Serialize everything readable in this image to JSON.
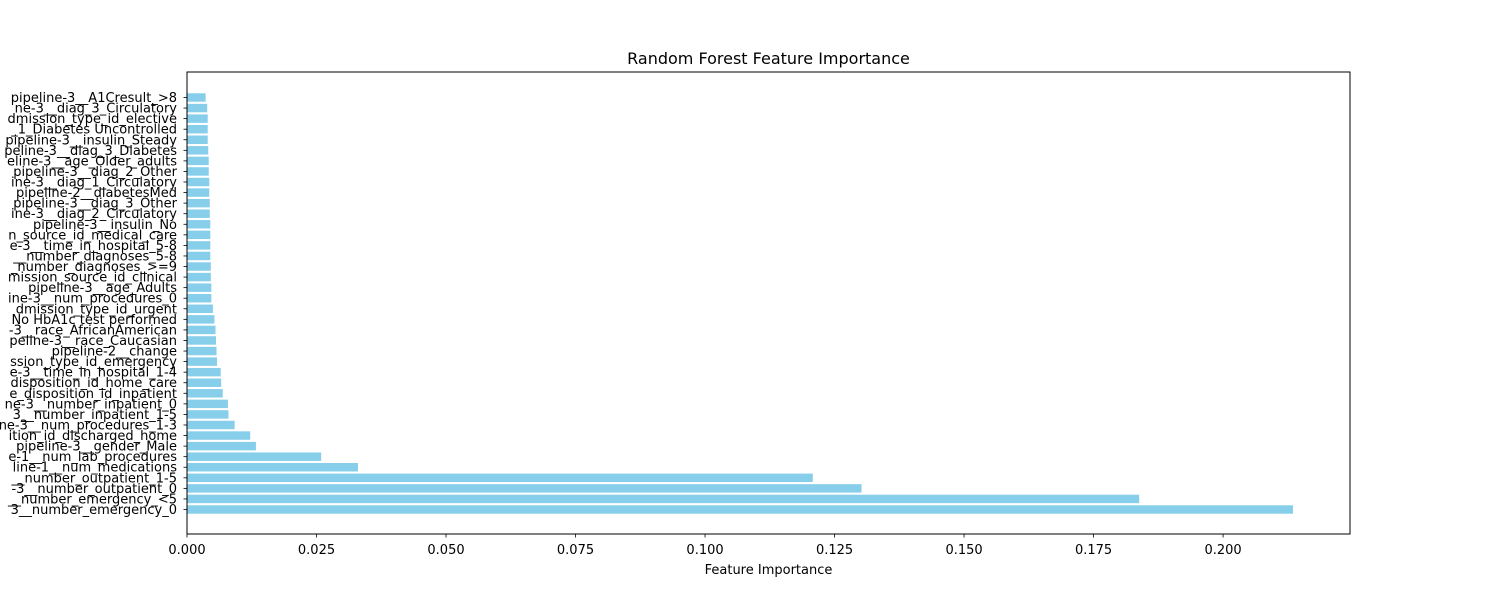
{
  "chart_data": {
    "type": "bar",
    "orientation": "horizontal",
    "title": "Random Forest Feature Importance",
    "xlabel": "Feature Importance",
    "ylabel": "",
    "xlim": [
      0,
      0.2245
    ],
    "xticks": [
      0.0,
      0.025,
      0.05,
      0.075,
      0.1,
      0.125,
      0.15,
      0.175,
      0.2
    ],
    "xtick_labels": [
      "0.000",
      "0.025",
      "0.050",
      "0.075",
      "0.100",
      "0.125",
      "0.150",
      "0.175",
      "0.200"
    ],
    "grid": false,
    "bar_color": "#87ceeb",
    "categories": [
      "3__number_emergency_0",
      "__number_emergency_<5",
      "-3__number_outpatient_0",
      "__number_outpatient_1-5",
      "line-1__num_medications",
      "e-1__num_lab_procedures",
      "pipeline-3__gender_Male",
      "ition_id_discharged_home",
      "ne-3__num_procedures_1-3",
      "3__number_inpatient_1-5",
      "ne-3__number_inpatient_0",
      "e_disposition_id_inpatient",
      "disposition_id_home_care",
      "e-3__time_in_hospital_1-4",
      "ssion_type_id_emergency",
      "pipeline-2__change",
      "peline-3__race_Caucasian",
      "-3__race_AfricanAmerican",
      "No HbA1c test performed",
      "dmission_type_id_urgent",
      "ine-3__num_procedures_0",
      "pipeline-3__age_Adults",
      "mission_source_id_clinical",
      "_number_diagnoses_>=9",
      "__number_diagnoses_5-8",
      "e-3__time_in_hospital_5-8",
      "n_source_id_medical_care",
      "pipeline-3__insulin_No",
      "ine-3__diag_2_Circulatory",
      "pipeline-3__diag_3_Other",
      "pipeline-2__diabetesMed",
      "ine-3__diag_1_Circulatory",
      "pipeline-3__diag_2_Other",
      "eline-3__age_Older_adults",
      "peline-3__diag_3_Diabetes",
      "pipeline-3__insulin_Steady",
      "_1_Diabetes Uncontrolled",
      "dmission_type_id_elective",
      "ne-3__diag_3_Circulatory",
      "pipeline-3__A1Cresult_>8"
    ],
    "values": [
      0.2135,
      0.1838,
      0.1302,
      0.1208,
      0.033,
      0.0259,
      0.0133,
      0.0122,
      0.0092,
      0.008,
      0.0079,
      0.0069,
      0.0066,
      0.0065,
      0.0058,
      0.0057,
      0.0056,
      0.0055,
      0.0053,
      0.005,
      0.0047,
      0.0047,
      0.0046,
      0.0046,
      0.0045,
      0.0045,
      0.0045,
      0.0045,
      0.0044,
      0.0044,
      0.0043,
      0.0043,
      0.0042,
      0.0042,
      0.0041,
      0.004,
      0.004,
      0.004,
      0.0039,
      0.0036
    ]
  }
}
